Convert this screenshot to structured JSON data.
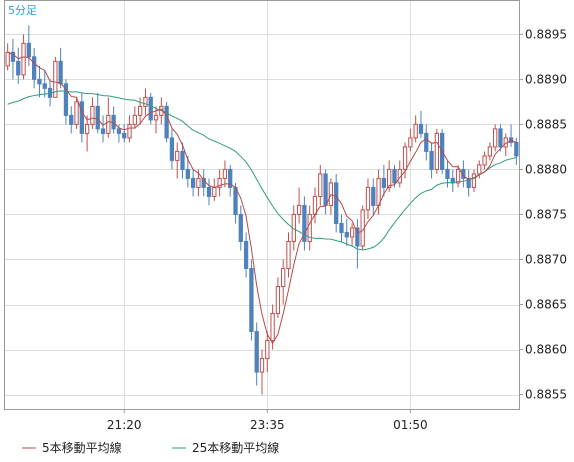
{
  "chart_data": {
    "type": "candlestick",
    "timeframe_label": "5分足",
    "y_ticks": [
      "0.8895",
      "0.8890",
      "0.8885",
      "0.8880",
      "0.8875",
      "0.8870",
      "0.8865",
      "0.8860",
      "0.8855"
    ],
    "y_tick_values": [
      0.8895,
      0.889,
      0.8885,
      0.888,
      0.8875,
      0.887,
      0.8865,
      0.886,
      0.8855
    ],
    "ylim": [
      0.88534,
      0.88987
    ],
    "x_ticks": [
      {
        "label": "21:20",
        "index": 22
      },
      {
        "label": "23:35",
        "index": 49
      },
      {
        "label": "01:50",
        "index": 76
      }
    ],
    "grid": true,
    "legend_position": "bottom-left",
    "colors": {
      "up": "#c0504d",
      "down": "#4f81bd",
      "ma5": "#b84a4a",
      "ma25": "#2e9e7e",
      "grid": "#dddddd",
      "tf_label": "#2a9fd6"
    },
    "series": [
      {
        "name": "5本移動平均線",
        "key": "ma5"
      },
      {
        "name": "25本移動平均線",
        "key": "ma25"
      }
    ],
    "candles": [
      [
        0.88915,
        0.8894,
        0.8891,
        0.8893
      ],
      [
        0.8893,
        0.88945,
        0.889,
        0.8892
      ],
      [
        0.8892,
        0.88935,
        0.88895,
        0.88905
      ],
      [
        0.88905,
        0.8895,
        0.889,
        0.8894
      ],
      [
        0.8894,
        0.8896,
        0.88915,
        0.88925
      ],
      [
        0.88925,
        0.88935,
        0.8889,
        0.889
      ],
      [
        0.889,
        0.88915,
        0.8888,
        0.88895
      ],
      [
        0.88895,
        0.8891,
        0.8888,
        0.8889
      ],
      [
        0.8889,
        0.889,
        0.8887,
        0.8888
      ],
      [
        0.8888,
        0.88925,
        0.8888,
        0.8892
      ],
      [
        0.8892,
        0.88935,
        0.8889,
        0.88895
      ],
      [
        0.88895,
        0.889,
        0.8885,
        0.8886
      ],
      [
        0.8886,
        0.8887,
        0.8884,
        0.8885
      ],
      [
        0.8885,
        0.8888,
        0.88845,
        0.88875
      ],
      [
        0.88875,
        0.88885,
        0.8883,
        0.8884
      ],
      [
        0.8884,
        0.8886,
        0.8882,
        0.8885
      ],
      [
        0.8885,
        0.8888,
        0.88845,
        0.8887
      ],
      [
        0.8887,
        0.88885,
        0.8884,
        0.88845
      ],
      [
        0.88845,
        0.8886,
        0.8883,
        0.8884
      ],
      [
        0.8884,
        0.8888,
        0.88835,
        0.8886
      ],
      [
        0.8886,
        0.8887,
        0.8884,
        0.88845
      ],
      [
        0.88845,
        0.8885,
        0.8883,
        0.8884
      ],
      [
        0.8884,
        0.8885,
        0.8883,
        0.88835
      ],
      [
        0.88835,
        0.8886,
        0.8883,
        0.8885
      ],
      [
        0.8885,
        0.8887,
        0.88845,
        0.8886
      ],
      [
        0.8886,
        0.8888,
        0.8885,
        0.8887
      ],
      [
        0.8887,
        0.8889,
        0.8886,
        0.8888
      ],
      [
        0.8888,
        0.88885,
        0.8885,
        0.88855
      ],
      [
        0.88855,
        0.8887,
        0.8884,
        0.8886
      ],
      [
        0.8886,
        0.8888,
        0.8885,
        0.8887
      ],
      [
        0.8887,
        0.88875,
        0.8883,
        0.88835
      ],
      [
        0.88835,
        0.88845,
        0.888,
        0.8881
      ],
      [
        0.8881,
        0.8883,
        0.8879,
        0.8882
      ],
      [
        0.8882,
        0.8883,
        0.8879,
        0.888
      ],
      [
        0.888,
        0.88815,
        0.8878,
        0.8879
      ],
      [
        0.8879,
        0.888,
        0.8877,
        0.8878
      ],
      [
        0.8878,
        0.888,
        0.8877,
        0.8879
      ],
      [
        0.8879,
        0.888,
        0.8877,
        0.8878
      ],
      [
        0.8878,
        0.8879,
        0.8876,
        0.8877
      ],
      [
        0.8877,
        0.8879,
        0.88765,
        0.8878
      ],
      [
        0.8878,
        0.888,
        0.8877,
        0.8879
      ],
      [
        0.8879,
        0.8881,
        0.8878,
        0.888
      ],
      [
        0.888,
        0.88805,
        0.8877,
        0.8878
      ],
      [
        0.8878,
        0.88785,
        0.8874,
        0.8875
      ],
      [
        0.8875,
        0.8876,
        0.8871,
        0.8872
      ],
      [
        0.8872,
        0.8873,
        0.8868,
        0.8869
      ],
      [
        0.8869,
        0.887,
        0.8861,
        0.8862
      ],
      [
        0.8862,
        0.8863,
        0.8856,
        0.88575
      ],
      [
        0.88575,
        0.886,
        0.8855,
        0.8859
      ],
      [
        0.8859,
        0.8862,
        0.88575,
        0.8861
      ],
      [
        0.8861,
        0.8865,
        0.886,
        0.8864
      ],
      [
        0.8864,
        0.8868,
        0.88635,
        0.8867
      ],
      [
        0.8867,
        0.887,
        0.8865,
        0.8869
      ],
      [
        0.8869,
        0.8873,
        0.8868,
        0.8872
      ],
      [
        0.8872,
        0.8876,
        0.8871,
        0.8875
      ],
      [
        0.8875,
        0.8878,
        0.8874,
        0.8876
      ],
      [
        0.8876,
        0.8877,
        0.8871,
        0.8872
      ],
      [
        0.8872,
        0.8876,
        0.8871,
        0.8875
      ],
      [
        0.8875,
        0.8878,
        0.8874,
        0.8877
      ],
      [
        0.8877,
        0.88805,
        0.8876,
        0.88795
      ],
      [
        0.88795,
        0.888,
        0.8875,
        0.8876
      ],
      [
        0.8876,
        0.8879,
        0.8875,
        0.88785
      ],
      [
        0.88785,
        0.88795,
        0.8873,
        0.8874
      ],
      [
        0.8874,
        0.8875,
        0.8872,
        0.8873
      ],
      [
        0.8873,
        0.88745,
        0.88715,
        0.88725
      ],
      [
        0.88725,
        0.8874,
        0.88715,
        0.88735
      ],
      [
        0.88735,
        0.88745,
        0.8869,
        0.88715
      ],
      [
        0.88715,
        0.8876,
        0.8871,
        0.88755
      ],
      [
        0.88755,
        0.8879,
        0.88745,
        0.8878
      ],
      [
        0.8878,
        0.8879,
        0.8875,
        0.8876
      ],
      [
        0.8876,
        0.888,
        0.8875,
        0.8879
      ],
      [
        0.8879,
        0.88805,
        0.8877,
        0.8878
      ],
      [
        0.8878,
        0.8881,
        0.88775,
        0.888
      ],
      [
        0.888,
        0.88805,
        0.8878,
        0.88785
      ],
      [
        0.88785,
        0.8881,
        0.8878,
        0.888
      ],
      [
        0.888,
        0.8883,
        0.8879,
        0.88825
      ],
      [
        0.88825,
        0.88845,
        0.8882,
        0.88835
      ],
      [
        0.88835,
        0.8886,
        0.8883,
        0.8885
      ],
      [
        0.8885,
        0.88865,
        0.88835,
        0.8884
      ],
      [
        0.8884,
        0.8885,
        0.8881,
        0.8882
      ],
      [
        0.8882,
        0.8883,
        0.8879,
        0.888
      ],
      [
        0.888,
        0.88845,
        0.88795,
        0.8884
      ],
      [
        0.8884,
        0.88845,
        0.88795,
        0.888
      ],
      [
        0.888,
        0.8881,
        0.8878,
        0.8879
      ],
      [
        0.8879,
        0.888,
        0.88775,
        0.88785
      ],
      [
        0.88785,
        0.88805,
        0.8878,
        0.888
      ],
      [
        0.888,
        0.8881,
        0.8878,
        0.8879
      ],
      [
        0.8879,
        0.888,
        0.8877,
        0.8878
      ],
      [
        0.8878,
        0.888,
        0.88775,
        0.88795
      ],
      [
        0.88795,
        0.8881,
        0.8879,
        0.88805
      ],
      [
        0.88805,
        0.8882,
        0.888,
        0.88815
      ],
      [
        0.88815,
        0.8883,
        0.8881,
        0.88825
      ],
      [
        0.88825,
        0.8885,
        0.8882,
        0.88845
      ],
      [
        0.88845,
        0.8885,
        0.8882,
        0.88825
      ],
      [
        0.88825,
        0.8884,
        0.88815,
        0.88835
      ],
      [
        0.88835,
        0.8885,
        0.88825,
        0.8883
      ],
      [
        0.8883,
        0.88835,
        0.88805,
        0.88815
      ]
    ]
  }
}
